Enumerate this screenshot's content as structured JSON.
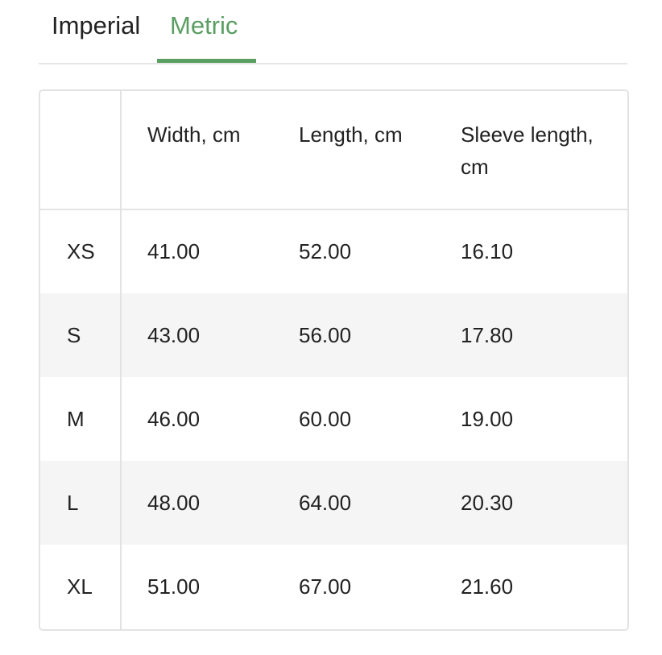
{
  "tabs": [
    {
      "label": "Imperial",
      "active": false
    },
    {
      "label": "Metric",
      "active": true
    }
  ],
  "accent_color": "#5a9e62",
  "table": {
    "headers": [
      "",
      "Width, cm",
      "Length, cm",
      "Sleeve length, cm"
    ],
    "rows": [
      [
        "XS",
        "41.00",
        "52.00",
        "16.10"
      ],
      [
        "S",
        "43.00",
        "56.00",
        "17.80"
      ],
      [
        "M",
        "46.00",
        "60.00",
        "19.00"
      ],
      [
        "L",
        "48.00",
        "64.00",
        "20.30"
      ],
      [
        "XL",
        "51.00",
        "67.00",
        "21.60"
      ]
    ]
  }
}
